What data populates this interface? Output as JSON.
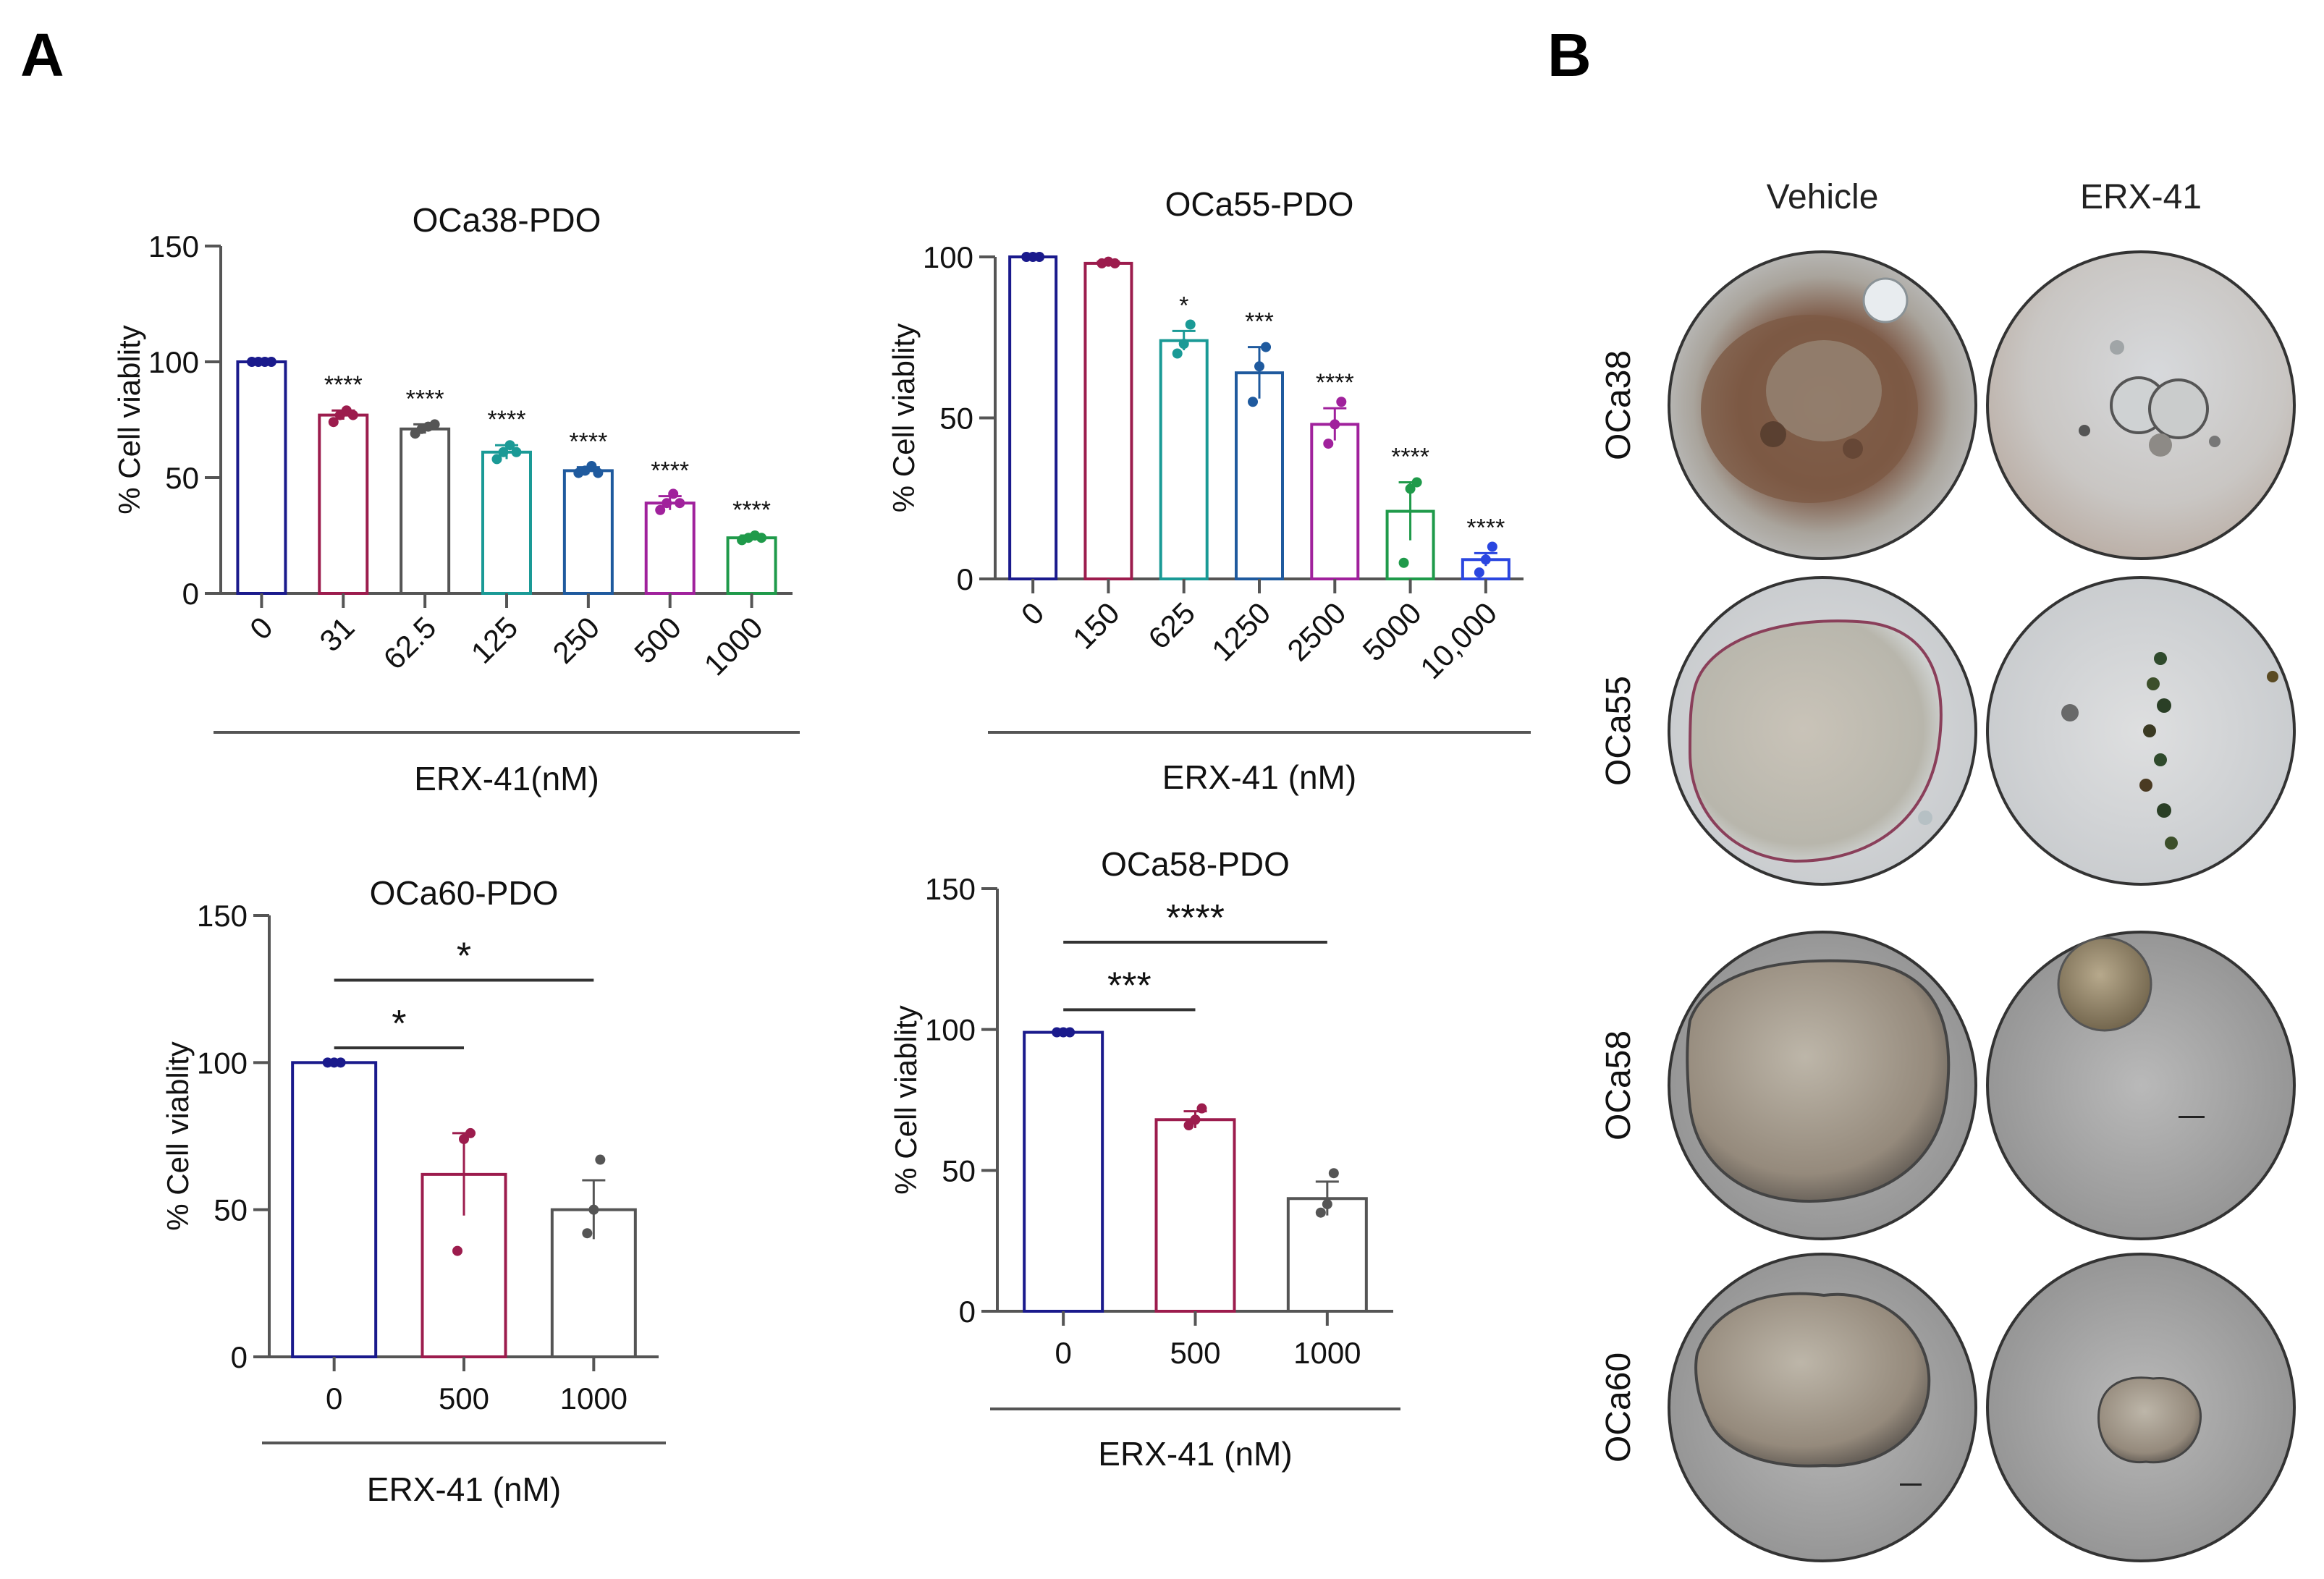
{
  "panels": {
    "a": "A",
    "b": "B"
  },
  "chart_data": [
    {
      "id": "c38",
      "type": "bar",
      "title": "OCa38-PDO",
      "ylabel": "% Cell viablity",
      "xlabel": "ERX-41(nM)",
      "ylim": [
        0,
        150
      ],
      "yticks": [
        0,
        50,
        100,
        150
      ],
      "categories": [
        "0",
        "31",
        "62.5",
        "125",
        "250",
        "500",
        "1000"
      ],
      "values": [
        100,
        77,
        71,
        61,
        53,
        39,
        24
      ],
      "errors": [
        0,
        2,
        2,
        3,
        1.5,
        3,
        1
      ],
      "points": [
        [
          100,
          100,
          100,
          100
        ],
        [
          74,
          77,
          79,
          77
        ],
        [
          69,
          71,
          72,
          73
        ],
        [
          58,
          61,
          64,
          61
        ],
        [
          52,
          53,
          55,
          52
        ],
        [
          36,
          39,
          43,
          39
        ],
        [
          23,
          24,
          25,
          24
        ]
      ],
      "stars": [
        "",
        "****",
        "****",
        "****",
        "****",
        "****",
        "****"
      ],
      "colors": [
        "#1a1a8c",
        "#9c1c4d",
        "#555555",
        "#1a9a96",
        "#1f5a9e",
        "#a0219c",
        "#1f9a4a"
      ]
    },
    {
      "id": "c55",
      "type": "bar",
      "title": "OCa55-PDO",
      "ylabel": "% Cell viablity",
      "xlabel": "ERX-41 (nM)",
      "ylim": [
        0,
        100
      ],
      "yticks": [
        0,
        50,
        100
      ],
      "categories": [
        "0",
        "150",
        "625",
        "1250",
        "2500",
        "5000",
        "10,000"
      ],
      "values": [
        100,
        98,
        74,
        64,
        48,
        21,
        6
      ],
      "errors": [
        0,
        0.5,
        3,
        8,
        5,
        9,
        2
      ],
      "points": [
        [
          100,
          100,
          100
        ],
        [
          98,
          98.5,
          98
        ],
        [
          70,
          73,
          79
        ],
        [
          55,
          66,
          72
        ],
        [
          42,
          48,
          55
        ],
        [
          5,
          28,
          30
        ],
        [
          2,
          6,
          10
        ]
      ],
      "stars": [
        "",
        "",
        "*",
        "***",
        "****",
        "****",
        "****"
      ],
      "colors": [
        "#1a1a8c",
        "#9c1c4d",
        "#1a9a96",
        "#1f5a9e",
        "#a0219c",
        "#1f9a4a",
        "#2a46e0"
      ]
    },
    {
      "id": "c60",
      "type": "bar",
      "title": "OCa60-PDO",
      "ylabel": "% Cell viablity",
      "xlabel": "ERX-41 (nM)",
      "ylim": [
        0,
        150
      ],
      "yticks": [
        0,
        50,
        100,
        150
      ],
      "categories": [
        "0",
        "500",
        "1000"
      ],
      "values": [
        100,
        62,
        50
      ],
      "errors": [
        0,
        14,
        10
      ],
      "points": [
        [
          100,
          100,
          100
        ],
        [
          36,
          74,
          76
        ],
        [
          42,
          50,
          67
        ]
      ],
      "brackets": [
        {
          "from": 0,
          "to": 1,
          "y": 105,
          "label": "*"
        },
        {
          "from": 0,
          "to": 2,
          "y": 128,
          "label": "*"
        }
      ],
      "colors": [
        "#1a1a8c",
        "#9c1c4d",
        "#555555"
      ]
    },
    {
      "id": "c58",
      "type": "bar",
      "title": "OCa58-PDO",
      "ylabel": "% Cell viablity",
      "xlabel": "ERX-41 (nM)",
      "ylim": [
        0,
        150
      ],
      "yticks": [
        0,
        50,
        100,
        150
      ],
      "categories": [
        "0",
        "500",
        "1000"
      ],
      "values": [
        99,
        68,
        40
      ],
      "errors": [
        0,
        3,
        6
      ],
      "points": [
        [
          99,
          99,
          99
        ],
        [
          66,
          68,
          72
        ],
        [
          35,
          38,
          49
        ]
      ],
      "brackets": [
        {
          "from": 0,
          "to": 1,
          "y": 107,
          "label": "***"
        },
        {
          "from": 0,
          "to": 2,
          "y": 131,
          "label": "****"
        }
      ],
      "colors": [
        "#1a1a8c",
        "#9c1c4d",
        "#555555"
      ]
    }
  ],
  "images": {
    "columns": [
      "Vehicle",
      "ERX-41"
    ],
    "rows": [
      "OCa38",
      "OCa55",
      "OCa58",
      "OCa60"
    ]
  }
}
